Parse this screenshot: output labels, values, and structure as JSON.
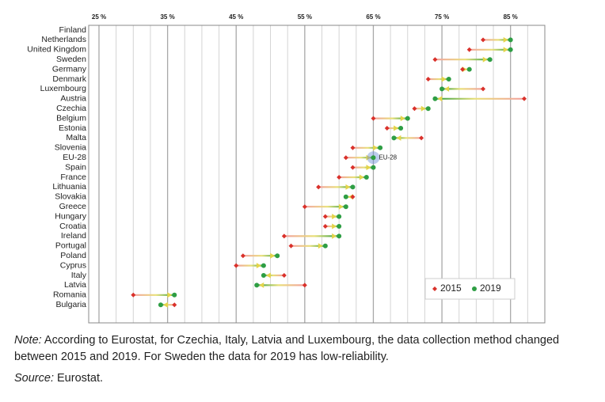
{
  "chart_data": {
    "type": "dumbbell",
    "categories": [
      "Finland",
      "Netherlands",
      "United Kingdom",
      "Sweden",
      "Germany",
      "Denmark",
      "Luxembourg",
      "Austria",
      "Czechia",
      "Belgium",
      "Estonia",
      "Malta",
      "Slovenia",
      "EU-28",
      "Spain",
      "France",
      "Lithuania",
      "Slovakia",
      "Greece",
      "Hungary",
      "Croatia",
      "Ireland",
      "Portugal",
      "Poland",
      "Cyprus",
      "Italy",
      "Latvia",
      "Romania",
      "Bulgaria"
    ],
    "series": [
      {
        "name": "2015",
        "color": "#d9312b",
        "values": [
          null,
          81,
          79,
          74,
          78,
          73,
          81,
          87,
          71,
          65,
          67,
          72,
          62,
          61,
          62,
          60,
          57,
          62,
          55,
          58,
          58,
          52,
          53,
          46,
          45,
          52,
          55,
          30,
          36
        ]
      },
      {
        "name": "2019",
        "color": "#2e9e44",
        "values": [
          null,
          85,
          85,
          82,
          79,
          76,
          75,
          74,
          73,
          70,
          69,
          68,
          66,
          65,
          65,
          64,
          62,
          61,
          61,
          60,
          60,
          60,
          58,
          51,
          49,
          49,
          48,
          36,
          34
        ]
      }
    ],
    "xlim": [
      23.5,
      90
    ],
    "xticks": [
      {
        "value": 25,
        "label": "25 %"
      },
      {
        "value": 35,
        "label": "35 %"
      },
      {
        "value": 45,
        "label": "45 %"
      },
      {
        "value": 55,
        "label": "55 %"
      },
      {
        "value": 65,
        "label": "65 %"
      },
      {
        "value": 75,
        "label": "75 %"
      },
      {
        "value": 85,
        "label": "85 %"
      }
    ],
    "minor_xticks": [
      27.5,
      30,
      32.5,
      37.5,
      40,
      42.5,
      47.5,
      50,
      52.5,
      57.5,
      60,
      62.5,
      67.5,
      70,
      72.5,
      77.5,
      80,
      82.5,
      87.5
    ],
    "grid": true,
    "legend": "lower right",
    "annotation": "EU-28"
  },
  "note_label": "Note:",
  "note_text": " According to Eurostat, for Czechia, Italy, Latvia and Luxembourg, the data collection method changed between 2015 and 2019. For Sweden the data for 2019 has low-reliability.",
  "source_label": "Source:",
  "source_text": " Eurostat."
}
